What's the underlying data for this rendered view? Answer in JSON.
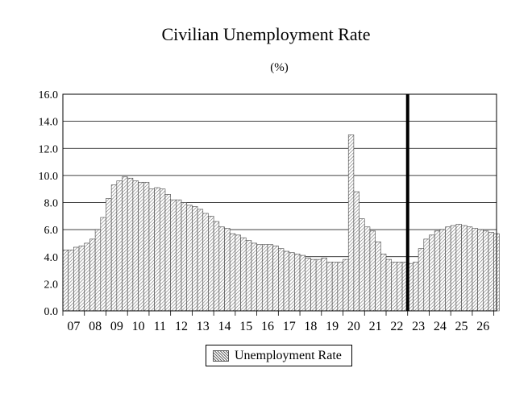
{
  "chart_data": {
    "type": "bar",
    "title": "Civilian Unemployment Rate",
    "subtitle": "(%)",
    "xlabel": "",
    "ylabel": "",
    "ylim": [
      0,
      16
    ],
    "yticks": [
      "0.0",
      "2.0",
      "4.0",
      "6.0",
      "8.0",
      "10.0",
      "12.0",
      "14.0",
      "16.0"
    ],
    "x_tick_labels": [
      "07",
      "08",
      "09",
      "10",
      "11",
      "12",
      "13",
      "14",
      "15",
      "16",
      "17",
      "18",
      "19",
      "20",
      "21",
      "22",
      "23",
      "24",
      "25",
      "26"
    ],
    "grid": true,
    "frequency": "quarterly",
    "vertical_marker_year": "23",
    "legend_position": "bottom",
    "series": [
      {
        "name": "Unemployment Rate",
        "values": [
          4.5,
          4.5,
          4.7,
          4.8,
          5.0,
          5.3,
          6.0,
          6.9,
          8.3,
          9.3,
          9.6,
          9.9,
          9.8,
          9.6,
          9.5,
          9.5,
          9.0,
          9.1,
          9.0,
          8.6,
          8.2,
          8.2,
          8.0,
          7.8,
          7.7,
          7.5,
          7.2,
          7.0,
          6.6,
          6.2,
          6.1,
          5.7,
          5.6,
          5.4,
          5.2,
          5.0,
          4.9,
          4.9,
          4.9,
          4.8,
          4.6,
          4.4,
          4.3,
          4.2,
          4.1,
          3.9,
          3.8,
          3.8,
          3.9,
          3.6,
          3.6,
          3.6,
          3.8,
          13.0,
          8.8,
          6.8,
          6.2,
          5.9,
          5.1,
          4.2,
          3.8,
          3.6,
          3.6,
          3.6,
          3.5,
          3.6,
          4.6,
          5.3,
          5.6,
          5.9,
          6.0,
          6.2,
          6.3,
          6.4,
          6.3,
          6.2,
          6.1,
          6.0,
          5.9,
          5.8,
          5.7
        ]
      }
    ]
  }
}
